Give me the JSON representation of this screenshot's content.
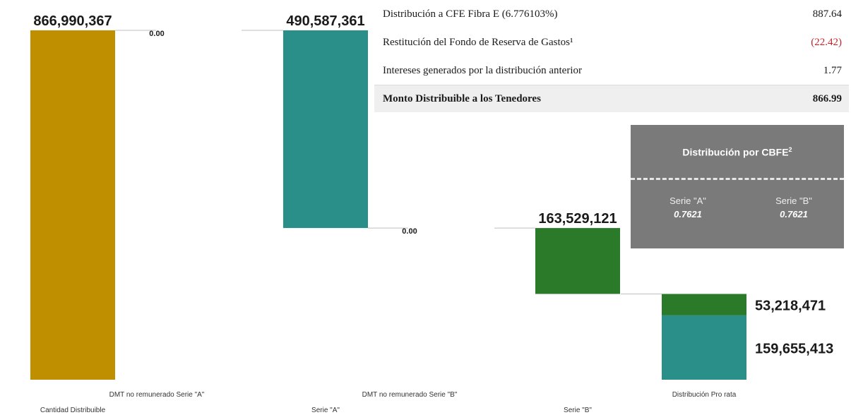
{
  "chart_data": {
    "type": "bar",
    "categories": [
      "Cantidad Distribuible",
      "DMT no remunerado Serie \"A\"",
      "Serie \"A\"",
      "DMT no remunerado Serie \"B\"",
      "Serie \"B\"",
      "Distribución Pro rata"
    ],
    "bars": [
      {
        "category": "Cantidad Distribuible",
        "base": 0,
        "value": 866990367,
        "label": "866,990,367",
        "color": "#bf8f00"
      },
      {
        "category": "DMT no remunerado Serie \"A\"",
        "base": 866990367,
        "value": 0,
        "label": "0.00",
        "color": "#bf8f00"
      },
      {
        "category": "Serie \"A\"",
        "base": 376403006,
        "value": 490587361,
        "label": "490,587,361",
        "color": "#2a8f88"
      },
      {
        "category": "DMT no remunerado Serie \"B\"",
        "base": 376403006,
        "value": 0,
        "label": "0.00",
        "color": "#2a8f88"
      },
      {
        "category": "Serie \"B\"",
        "base": 212873885,
        "value": 163529121,
        "label": "163,529,121",
        "color": "#2a7a2a"
      }
    ],
    "stack": {
      "category": "Distribución Pro rata",
      "segments": [
        {
          "value": 159655413,
          "label": "159,655,413",
          "color": "#2a8f88"
        },
        {
          "value": 53218471,
          "label": "53,218,471",
          "color": "#2a7a2a"
        }
      ]
    },
    "ylim": [
      0,
      866990367
    ]
  },
  "summary": {
    "rows": [
      {
        "label": "Distribución a CFE Fibra E (6.776103%)",
        "value": "887.64",
        "color": "#1a1a1a"
      },
      {
        "label": "Restitución del Fondo de Reserva de Gastos¹",
        "value": "(22.42)",
        "color": "#c0272d"
      },
      {
        "label": "Intereses generados por la distribución anterior",
        "value": "1.77",
        "color": "#1a1a1a"
      }
    ],
    "total": {
      "label": "Monto Distribuible a los Tenedores",
      "value": "866.99"
    }
  },
  "cbfe": {
    "title": "Distribución por CBFE",
    "title_sup": "2",
    "series": [
      {
        "name": "Serie \"A\"",
        "value": "0.7621"
      },
      {
        "name": "Serie \"B\"",
        "value": "0.7621"
      }
    ]
  }
}
